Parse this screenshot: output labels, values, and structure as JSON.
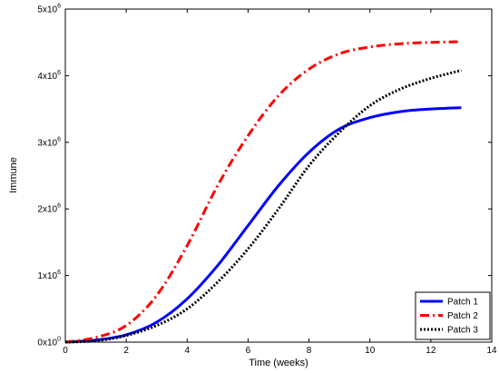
{
  "chart_data": {
    "type": "line",
    "xlabel": "Time (weeks)",
    "ylabel": "Immune",
    "xlim": [
      0,
      14
    ],
    "ylim": [
      0,
      5000000
    ],
    "xticks": [
      0,
      2,
      4,
      6,
      8,
      10,
      12,
      14
    ],
    "xtick_labels": [
      "0",
      "2",
      "4",
      "6",
      "8",
      "10",
      "12",
      "14"
    ],
    "yticks": [
      0,
      1000000,
      2000000,
      3000000,
      4000000,
      5000000
    ],
    "ytick_labels": [
      {
        "base": "0x10",
        "exp": "0"
      },
      {
        "base": "1x10",
        "exp": "6"
      },
      {
        "base": "2x10",
        "exp": "6"
      },
      {
        "base": "3x10",
        "exp": "6"
      },
      {
        "base": "4x10",
        "exp": "6"
      },
      {
        "base": "5x10",
        "exp": "6"
      }
    ],
    "grid": false,
    "legend_position": "bottom-right",
    "x": [
      0,
      1,
      2,
      3,
      4,
      5,
      6,
      7,
      8,
      9,
      10,
      11,
      12,
      13
    ],
    "series": [
      {
        "name": "Patch 1",
        "color": "#0000ff",
        "style": "solid",
        "values": [
          0,
          30000,
          110000,
          300000,
          650000,
          1150000,
          1750000,
          2350000,
          2850000,
          3200000,
          3370000,
          3460000,
          3500000,
          3520000
        ]
      },
      {
        "name": "Patch 2",
        "color": "#ff0000",
        "style": "dashdot",
        "values": [
          0,
          70000,
          250000,
          700000,
          1450000,
          2350000,
          3100000,
          3700000,
          4100000,
          4330000,
          4430000,
          4480000,
          4500000,
          4510000
        ]
      },
      {
        "name": "Patch 3",
        "color": "#000000",
        "style": "dotted",
        "values": [
          0,
          20000,
          100000,
          250000,
          500000,
          900000,
          1400000,
          2000000,
          2650000,
          3150000,
          3550000,
          3800000,
          3960000,
          4080000
        ]
      }
    ]
  }
}
